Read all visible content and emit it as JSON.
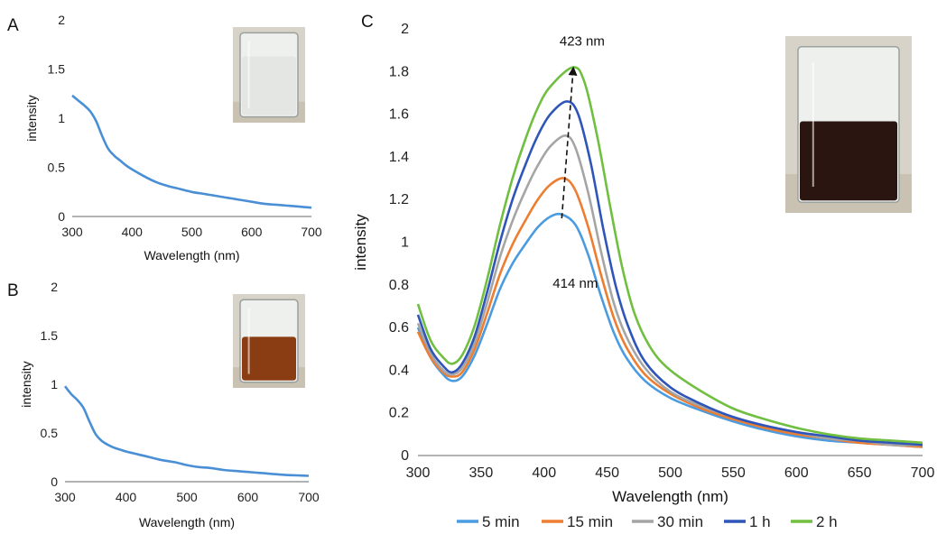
{
  "chart_data": [
    {
      "panel": "A",
      "type": "line",
      "xlabel": "Wavelength (nm)",
      "ylabel": "intensity",
      "xlim": [
        300,
        700
      ],
      "ylim": [
        0,
        2
      ],
      "xticks": [
        "300",
        "400",
        "500",
        "600",
        "700"
      ],
      "yticks": [
        "0",
        "0.5",
        "1",
        "1.5",
        "2"
      ],
      "grid": false,
      "inset": "beaker-clear",
      "colors": {
        "line": "#4a8fd6"
      },
      "series": [
        {
          "x": [
            300,
            310,
            320,
            330,
            340,
            350,
            360,
            370,
            380,
            390,
            400,
            420,
            440,
            460,
            480,
            500,
            520,
            540,
            560,
            580,
            600,
            620,
            640,
            660,
            680,
            700
          ],
          "y": [
            1.23,
            1.18,
            1.13,
            1.07,
            0.97,
            0.82,
            0.69,
            0.62,
            0.57,
            0.52,
            0.48,
            0.41,
            0.35,
            0.31,
            0.28,
            0.25,
            0.23,
            0.21,
            0.19,
            0.17,
            0.15,
            0.13,
            0.12,
            0.11,
            0.1,
            0.09
          ]
        }
      ]
    },
    {
      "panel": "B",
      "type": "line",
      "xlabel": "Wavelength (nm)",
      "ylabel": "intensity",
      "xlim": [
        300,
        700
      ],
      "ylim": [
        0,
        2
      ],
      "xticks": [
        "300",
        "400",
        "500",
        "600",
        "700"
      ],
      "yticks": [
        "0",
        "0.5",
        "1",
        "1.5",
        "2"
      ],
      "grid": false,
      "inset": "beaker-amber",
      "colors": {
        "line": "#4a8fd6"
      },
      "series": [
        {
          "x": [
            300,
            310,
            320,
            330,
            340,
            350,
            360,
            370,
            380,
            390,
            400,
            420,
            440,
            460,
            480,
            500,
            520,
            540,
            560,
            580,
            600,
            620,
            640,
            660,
            680,
            700
          ],
          "y": [
            0.98,
            0.9,
            0.84,
            0.76,
            0.62,
            0.49,
            0.42,
            0.38,
            0.35,
            0.33,
            0.31,
            0.28,
            0.25,
            0.22,
            0.2,
            0.17,
            0.15,
            0.14,
            0.12,
            0.11,
            0.1,
            0.09,
            0.08,
            0.07,
            0.065,
            0.06
          ]
        }
      ]
    },
    {
      "panel": "C",
      "type": "line",
      "xlabel": "Wavelength (nm)",
      "ylabel": "intensity",
      "xlim": [
        300,
        700
      ],
      "ylim": [
        0,
        2
      ],
      "xticks": [
        "300",
        "350",
        "400",
        "450",
        "500",
        "550",
        "600",
        "650",
        "700"
      ],
      "yticks": [
        "0",
        "0.2",
        "0.4",
        "0.6",
        "0.8",
        "1",
        "1.2",
        "1.4",
        "1.6",
        "1.8",
        "2"
      ],
      "grid": false,
      "legend": "bottom",
      "inset": "beaker-dark",
      "annotations": [
        {
          "text": "423 nm",
          "x": 423,
          "y": 1.82
        },
        {
          "text": "414 nm",
          "x": 414,
          "y": 1.12
        }
      ],
      "series": [
        {
          "name": "5 min",
          "color": "#4a9be0",
          "x": [
            300,
            310,
            320,
            327,
            335,
            345,
            355,
            365,
            375,
            385,
            395,
            405,
            414,
            425,
            435,
            445,
            455,
            465,
            480,
            500,
            525,
            550,
            575,
            600,
            625,
            650,
            675,
            700
          ],
          "y": [
            0.6,
            0.46,
            0.38,
            0.35,
            0.37,
            0.47,
            0.62,
            0.78,
            0.9,
            0.99,
            1.07,
            1.12,
            1.13,
            1.08,
            0.94,
            0.75,
            0.58,
            0.46,
            0.35,
            0.27,
            0.21,
            0.16,
            0.12,
            0.09,
            0.07,
            0.06,
            0.05,
            0.04
          ]
        },
        {
          "name": "15 min",
          "color": "#ed7d31",
          "x": [
            300,
            310,
            320,
            327,
            335,
            345,
            355,
            365,
            375,
            385,
            395,
            405,
            416,
            425,
            435,
            445,
            455,
            465,
            480,
            500,
            525,
            550,
            575,
            600,
            625,
            650,
            675,
            700
          ],
          "y": [
            0.58,
            0.46,
            0.39,
            0.37,
            0.39,
            0.5,
            0.67,
            0.85,
            0.99,
            1.1,
            1.2,
            1.27,
            1.3,
            1.24,
            1.07,
            0.85,
            0.65,
            0.51,
            0.38,
            0.29,
            0.22,
            0.17,
            0.13,
            0.1,
            0.08,
            0.06,
            0.05,
            0.04
          ]
        },
        {
          "name": "30 min",
          "color": "#a5a5a5",
          "x": [
            300,
            310,
            320,
            327,
            335,
            345,
            355,
            365,
            375,
            385,
            395,
            405,
            417,
            425,
            435,
            445,
            455,
            465,
            480,
            500,
            525,
            550,
            575,
            600,
            625,
            650,
            675,
            700
          ],
          "y": [
            0.62,
            0.48,
            0.4,
            0.38,
            0.41,
            0.53,
            0.72,
            0.93,
            1.1,
            1.24,
            1.36,
            1.45,
            1.5,
            1.44,
            1.23,
            0.96,
            0.72,
            0.56,
            0.41,
            0.3,
            0.23,
            0.18,
            0.14,
            0.11,
            0.08,
            0.07,
            0.05,
            0.05
          ]
        },
        {
          "name": "1 h",
          "color": "#2f55b8",
          "x": [
            300,
            310,
            320,
            327,
            335,
            345,
            355,
            365,
            375,
            385,
            395,
            405,
            418,
            427,
            437,
            447,
            457,
            467,
            480,
            500,
            525,
            550,
            575,
            600,
            625,
            650,
            675,
            700
          ],
          "y": [
            0.66,
            0.5,
            0.42,
            0.39,
            0.43,
            0.56,
            0.77,
            1.0,
            1.2,
            1.36,
            1.5,
            1.6,
            1.66,
            1.6,
            1.37,
            1.06,
            0.79,
            0.6,
            0.44,
            0.32,
            0.24,
            0.18,
            0.14,
            0.11,
            0.09,
            0.07,
            0.06,
            0.05
          ]
        },
        {
          "name": "2 h",
          "color": "#70bf41",
          "x": [
            300,
            310,
            320,
            327,
            335,
            345,
            355,
            365,
            375,
            385,
            395,
            405,
            423,
            432,
            442,
            452,
            462,
            472,
            485,
            500,
            525,
            550,
            575,
            600,
            625,
            650,
            675,
            700
          ],
          "y": [
            0.71,
            0.54,
            0.46,
            0.43,
            0.47,
            0.61,
            0.83,
            1.08,
            1.3,
            1.48,
            1.63,
            1.73,
            1.82,
            1.75,
            1.5,
            1.18,
            0.88,
            0.66,
            0.5,
            0.4,
            0.3,
            0.22,
            0.17,
            0.13,
            0.1,
            0.08,
            0.07,
            0.06
          ]
        }
      ]
    }
  ],
  "labels": {
    "panelA": "A",
    "panelB": "B",
    "panelC": "C"
  }
}
